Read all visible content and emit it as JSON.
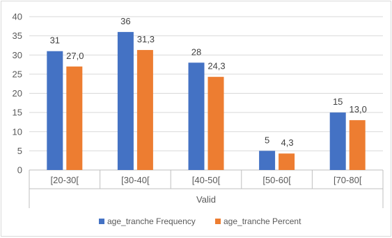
{
  "chart_data": {
    "type": "bar",
    "categories": [
      "[20-30[",
      "[30-40[",
      "[40-50[",
      "[50-60[",
      "[70-80["
    ],
    "group_label": "Valid",
    "series": [
      {
        "name": "age_tranche Frequency",
        "values": [
          31,
          36,
          28,
          5,
          15
        ],
        "labels": [
          "31",
          "36",
          "28",
          "5",
          "15"
        ],
        "color": "#4472c4"
      },
      {
        "name": "age_tranche Percent",
        "values": [
          27.0,
          31.3,
          24.3,
          4.3,
          13.0
        ],
        "labels": [
          "27,0",
          "31,3",
          "24,3",
          "4,3",
          "13,0"
        ],
        "color": "#ed7d31"
      }
    ],
    "ylim": [
      0,
      40
    ],
    "yticks": [
      0,
      5,
      10,
      15,
      20,
      25,
      30,
      35,
      40
    ],
    "grid": true,
    "legend_position": "bottom",
    "colors": {
      "grid": "#d9d9d9",
      "axis": "#bfbfbf"
    }
  }
}
